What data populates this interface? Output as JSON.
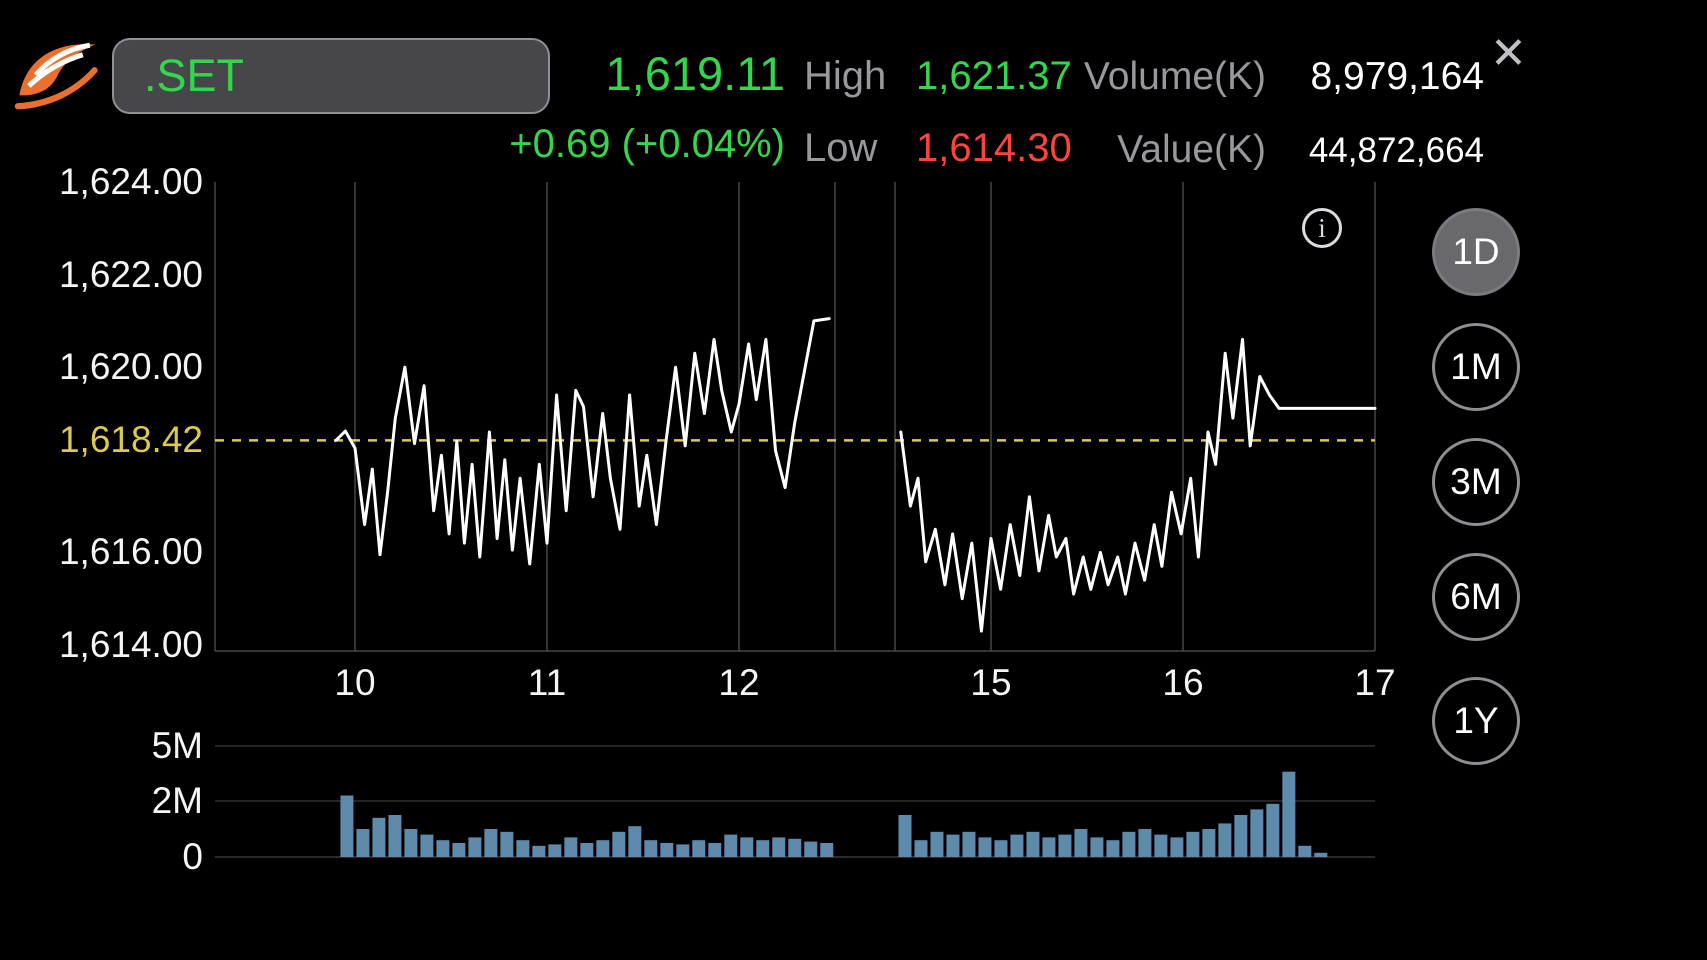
{
  "header": {
    "symbol": ".SET",
    "last_price": "1,619.11",
    "change": "+0.69 (+0.04%)",
    "stats": {
      "high_label": "High",
      "high": "1,621.37",
      "low_label": "Low",
      "low": "1,614.30",
      "volume_label": "Volume(K)",
      "volume": "8,979,164",
      "value_label": "Value(K)",
      "value": "44,872,664"
    },
    "close_glyph": "✕"
  },
  "info_glyph": "i",
  "timeframes": [
    {
      "label": "1D",
      "selected": true
    },
    {
      "label": "1M",
      "selected": false
    },
    {
      "label": "3M",
      "selected": false
    },
    {
      "label": "6M",
      "selected": false
    },
    {
      "label": "1Y",
      "selected": false
    }
  ],
  "colors": {
    "up": "#32d74b",
    "down": "#ff453a",
    "prev_close_line": "#ddc94f",
    "volume_bar": "#5e8aab",
    "muted_label": "#98989d",
    "grid": "#47474b",
    "line": "#ffffff"
  },
  "chart_data": {
    "type": "line",
    "symbol": ".SET",
    "prev_close": 1618.42,
    "ylim": [
      1614,
      1624
    ],
    "y_ticks": [
      {
        "label": "1,624.00",
        "value": 1624
      },
      {
        "label": "1,622.00",
        "value": 1622
      },
      {
        "label": "1,620.00",
        "value": 1620
      },
      {
        "label": "1,618.42",
        "value": 1618.42,
        "highlight": true
      },
      {
        "label": "1,616.00",
        "value": 1616
      },
      {
        "label": "1,614.00",
        "value": 1614
      }
    ],
    "x_ticks": [
      10,
      11,
      12,
      15,
      16,
      17
    ],
    "session_breaks": [
      12.5,
      14.5
    ],
    "price_sessions": [
      {
        "points": [
          [
            9.9,
            1618.42
          ],
          [
            9.95,
            1618.62
          ],
          [
            10.0,
            1618.25
          ],
          [
            10.05,
            1616.6
          ],
          [
            10.09,
            1617.8
          ],
          [
            10.13,
            1615.95
          ],
          [
            10.17,
            1617.3
          ],
          [
            10.21,
            1618.9
          ],
          [
            10.26,
            1620.0
          ],
          [
            10.31,
            1618.35
          ],
          [
            10.36,
            1619.6
          ],
          [
            10.41,
            1616.9
          ],
          [
            10.45,
            1618.1
          ],
          [
            10.49,
            1616.4
          ],
          [
            10.53,
            1618.4
          ],
          [
            10.57,
            1616.2
          ],
          [
            10.61,
            1617.9
          ],
          [
            10.65,
            1615.9
          ],
          [
            10.7,
            1618.6
          ],
          [
            10.74,
            1616.3
          ],
          [
            10.78,
            1618.0
          ],
          [
            10.82,
            1616.05
          ],
          [
            10.86,
            1617.6
          ],
          [
            10.91,
            1615.75
          ],
          [
            10.96,
            1617.9
          ],
          [
            11.0,
            1616.2
          ],
          [
            11.05,
            1619.4
          ],
          [
            11.1,
            1616.9
          ],
          [
            11.15,
            1619.5
          ],
          [
            11.19,
            1619.15
          ],
          [
            11.24,
            1617.2
          ],
          [
            11.29,
            1619.0
          ],
          [
            11.33,
            1617.6
          ],
          [
            11.38,
            1616.5
          ],
          [
            11.43,
            1619.4
          ],
          [
            11.48,
            1617.0
          ],
          [
            11.52,
            1618.1
          ],
          [
            11.57,
            1616.6
          ],
          [
            11.62,
            1618.4
          ],
          [
            11.67,
            1620.0
          ],
          [
            11.72,
            1618.3
          ],
          [
            11.77,
            1620.3
          ],
          [
            11.82,
            1619.0
          ],
          [
            11.87,
            1620.6
          ],
          [
            11.91,
            1619.5
          ],
          [
            11.96,
            1618.6
          ],
          [
            12.0,
            1619.2
          ],
          [
            12.05,
            1620.5
          ],
          [
            12.09,
            1619.3
          ],
          [
            12.14,
            1620.6
          ],
          [
            12.19,
            1618.2
          ],
          [
            12.24,
            1617.4
          ],
          [
            12.29,
            1618.8
          ],
          [
            12.34,
            1619.9
          ],
          [
            12.39,
            1621.0
          ],
          [
            12.47,
            1621.05
          ]
        ]
      },
      {
        "points": [
          [
            14.53,
            1618.6
          ],
          [
            14.58,
            1617.0
          ],
          [
            14.62,
            1617.6
          ],
          [
            14.66,
            1615.8
          ],
          [
            14.71,
            1616.5
          ],
          [
            14.76,
            1615.3
          ],
          [
            14.8,
            1616.4
          ],
          [
            14.85,
            1615.0
          ],
          [
            14.9,
            1616.2
          ],
          [
            14.95,
            1614.3
          ],
          [
            15.0,
            1616.3
          ],
          [
            15.05,
            1615.2
          ],
          [
            15.1,
            1616.6
          ],
          [
            15.15,
            1615.5
          ],
          [
            15.2,
            1617.2
          ],
          [
            15.25,
            1615.6
          ],
          [
            15.3,
            1616.8
          ],
          [
            15.34,
            1615.9
          ],
          [
            15.39,
            1616.3
          ],
          [
            15.43,
            1615.1
          ],
          [
            15.48,
            1615.9
          ],
          [
            15.52,
            1615.2
          ],
          [
            15.57,
            1616.0
          ],
          [
            15.61,
            1615.3
          ],
          [
            15.66,
            1615.9
          ],
          [
            15.7,
            1615.1
          ],
          [
            15.75,
            1616.2
          ],
          [
            15.8,
            1615.4
          ],
          [
            15.85,
            1616.6
          ],
          [
            15.89,
            1615.7
          ],
          [
            15.94,
            1617.3
          ],
          [
            15.99,
            1616.4
          ],
          [
            16.04,
            1617.6
          ],
          [
            16.08,
            1615.9
          ],
          [
            16.13,
            1618.6
          ],
          [
            16.17,
            1617.9
          ],
          [
            16.22,
            1620.3
          ],
          [
            16.26,
            1618.9
          ],
          [
            16.31,
            1620.6
          ],
          [
            16.35,
            1618.3
          ],
          [
            16.4,
            1619.8
          ],
          [
            16.45,
            1619.4
          ],
          [
            16.5,
            1619.11
          ],
          [
            17.0,
            1619.11
          ]
        ]
      }
    ],
    "volume": {
      "unit": "M",
      "ticks": [
        {
          "label": "5M",
          "value": 5
        },
        {
          "label": "2M",
          "value": 2
        },
        {
          "label": "0",
          "value": 0
        }
      ],
      "bar_interval_hours": 0.0833,
      "sessions": [
        {
          "start": 9.958,
          "values": [
            2.3,
            1.0,
            1.4,
            1.5,
            1.0,
            0.8,
            0.6,
            0.5,
            0.7,
            1.0,
            0.9,
            0.6,
            0.4,
            0.45,
            0.7,
            0.5,
            0.6,
            0.9,
            1.1,
            0.6,
            0.5,
            0.45,
            0.6,
            0.5,
            0.8,
            0.7,
            0.6,
            0.7,
            0.65,
            0.55,
            0.5
          ]
        },
        {
          "start": 14.552,
          "values": [
            1.5,
            0.6,
            0.9,
            0.8,
            0.9,
            0.7,
            0.6,
            0.8,
            0.9,
            0.7,
            0.8,
            1.0,
            0.7,
            0.6,
            0.9,
            1.0,
            0.8,
            0.7,
            0.9,
            1.0,
            1.2,
            1.5,
            1.7,
            1.9,
            3.6,
            0.4,
            0.15
          ]
        }
      ]
    }
  }
}
